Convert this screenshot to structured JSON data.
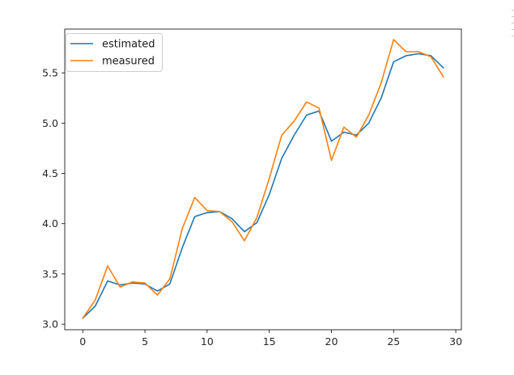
{
  "chart_data": {
    "type": "line",
    "title": "",
    "xlabel": "",
    "ylabel": "",
    "xlim": [
      -1.45,
      30.45
    ],
    "ylim": [
      2.945,
      5.935
    ],
    "x_ticks": [
      0,
      5,
      10,
      15,
      20,
      25,
      30
    ],
    "y_ticks": [
      3.0,
      3.5,
      4.0,
      4.5,
      5.0,
      5.5
    ],
    "x_tick_labels": [
      "0",
      "5",
      "10",
      "15",
      "20",
      "25",
      "30"
    ],
    "y_tick_labels": [
      "3.0",
      "3.5",
      "4.0",
      "4.5",
      "5.0",
      "5.5"
    ],
    "grid": false,
    "legend_position": "upper left",
    "x": [
      0,
      1,
      2,
      3,
      4,
      5,
      6,
      7,
      8,
      9,
      10,
      11,
      12,
      13,
      14,
      15,
      16,
      17,
      18,
      19,
      20,
      21,
      22,
      23,
      24,
      25,
      26,
      27,
      28,
      29
    ],
    "series": [
      {
        "name": "estimated",
        "color": "#1f77b4",
        "values": [
          3.06,
          3.18,
          3.43,
          3.39,
          3.41,
          3.4,
          3.33,
          3.4,
          3.76,
          4.07,
          4.11,
          4.12,
          4.05,
          3.92,
          4.01,
          4.29,
          4.65,
          4.88,
          5.08,
          5.12,
          4.82,
          4.91,
          4.88,
          5.0,
          5.25,
          5.61,
          5.67,
          5.69,
          5.67,
          5.55
        ]
      },
      {
        "name": "measured",
        "color": "#ff7f0e",
        "values": [
          3.06,
          3.24,
          3.58,
          3.37,
          3.42,
          3.41,
          3.29,
          3.45,
          3.95,
          4.26,
          4.13,
          4.12,
          4.02,
          3.83,
          4.06,
          4.45,
          4.88,
          5.02,
          5.21,
          5.15,
          4.63,
          4.96,
          4.86,
          5.08,
          5.4,
          5.83,
          5.71,
          5.71,
          5.66,
          5.46
        ]
      }
    ]
  }
}
